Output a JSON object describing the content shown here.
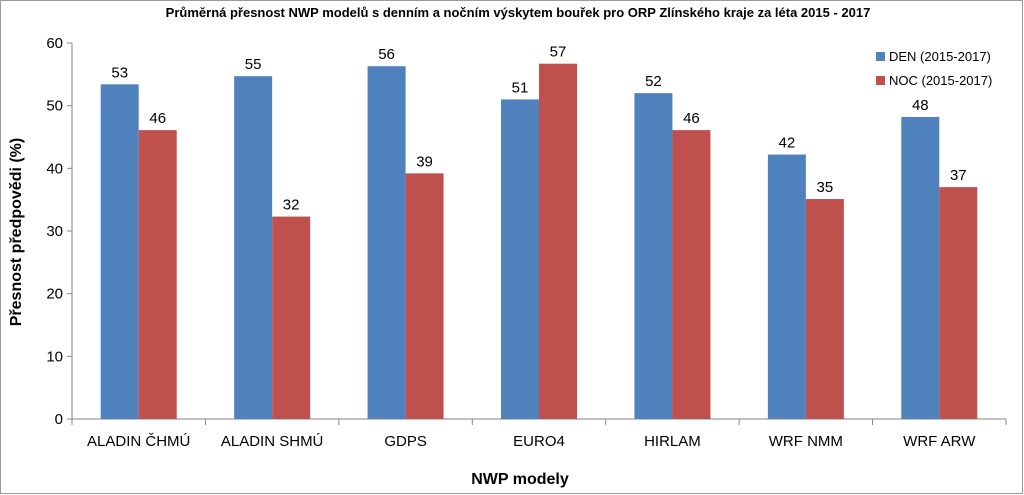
{
  "chart_data": {
    "type": "bar",
    "title": "Průměrná přesnost NWP modelů s denním a nočním výskytem bouřek pro ORP Zlínského kraje za léta 2015 - 2017",
    "xlabel": "NWP modely",
    "ylabel": "Přesnost předpovědi (%)",
    "ylim": [
      0,
      60
    ],
    "yticks": [
      0,
      10,
      20,
      30,
      40,
      50,
      60
    ],
    "categories": [
      "ALADIN ČHMÚ",
      "ALADIN SHMÚ",
      "GDPS",
      "EURO4",
      "HIRLAM",
      "WRF NMM",
      "WRF ARW"
    ],
    "series": [
      {
        "name": "DEN (2015-2017)",
        "color": "#4F81BD",
        "values": [
          53.4,
          54.7,
          56.3,
          51.0,
          52.0,
          42.2,
          48.2
        ],
        "labels": [
          "53",
          "55",
          "56",
          "51",
          "52",
          "42",
          "48"
        ]
      },
      {
        "name": "NOC (2015-2017)",
        "color": "#C0504D",
        "values": [
          46.1,
          32.3,
          39.2,
          56.7,
          46.1,
          35.1,
          37.0
        ],
        "labels": [
          "46",
          "32",
          "39",
          "57",
          "46",
          "35",
          "37"
        ]
      }
    ],
    "grid": false,
    "legend_position": "top-right"
  }
}
